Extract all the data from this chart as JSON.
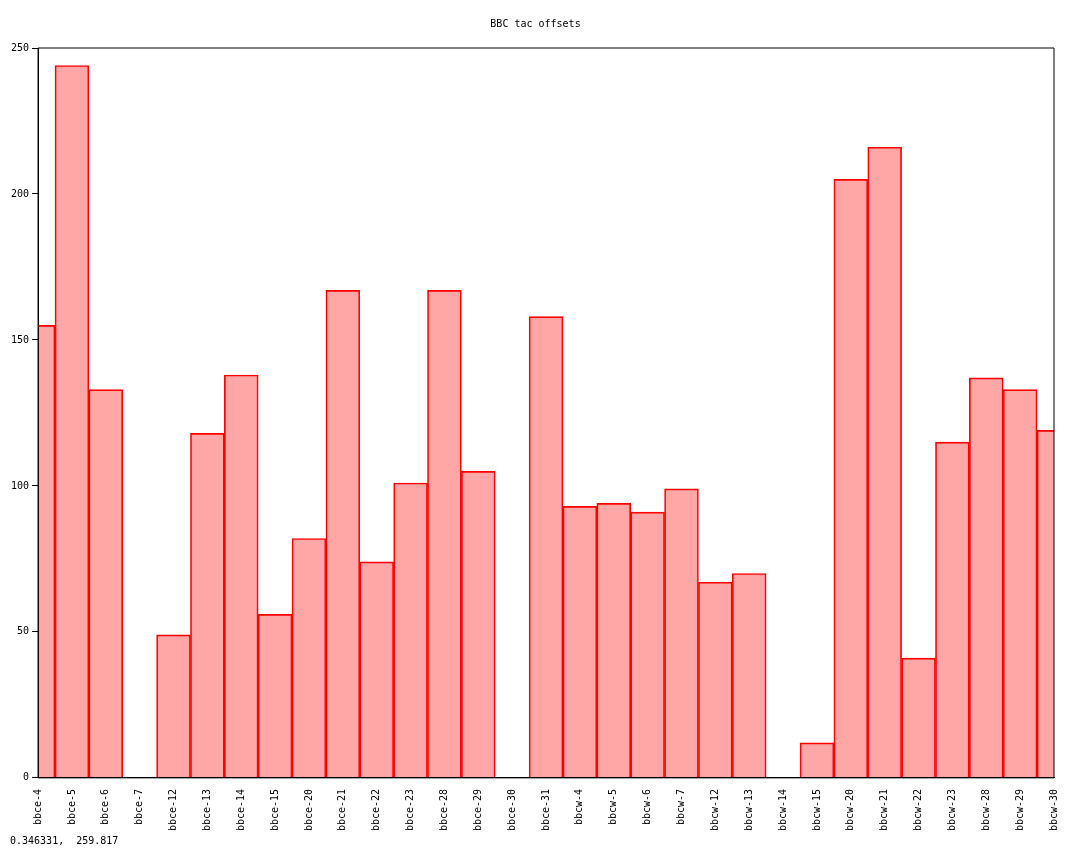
{
  "chart_data": {
    "type": "bar",
    "title": "BBC tac offsets",
    "categories": [
      "bbce-4",
      "bbce-5",
      "bbce-6",
      "bbce-7",
      "bbce-12",
      "bbce-13",
      "bbce-14",
      "bbce-15",
      "bbce-20",
      "bbce-21",
      "bbce-22",
      "bbce-23",
      "bbce-28",
      "bbce-29",
      "bbce-30",
      "bbce-31",
      "bbcw-4",
      "bbcw-5",
      "bbcw-6",
      "bbcw-7",
      "bbcw-12",
      "bbcw-13",
      "bbcw-14",
      "bbcw-15",
      "bbcw-20",
      "bbcw-21",
      "bbcw-22",
      "bbcw-23",
      "bbcw-28",
      "bbcw-29",
      "bbcw-30"
    ],
    "values": [
      155,
      244,
      133,
      0,
      49,
      118,
      138,
      56,
      82,
      167,
      74,
      101,
      167,
      105,
      0,
      158,
      93,
      94,
      91,
      99,
      67,
      70,
      0,
      12,
      205,
      216,
      41,
      115,
      137,
      133,
      119
    ],
    "color": "#ff0000",
    "ylim": [
      0,
      250
    ],
    "yticks": [
      0,
      50,
      100,
      150,
      200,
      250
    ],
    "grid": false,
    "annotations": [
      "0.346331,  259.817"
    ]
  }
}
